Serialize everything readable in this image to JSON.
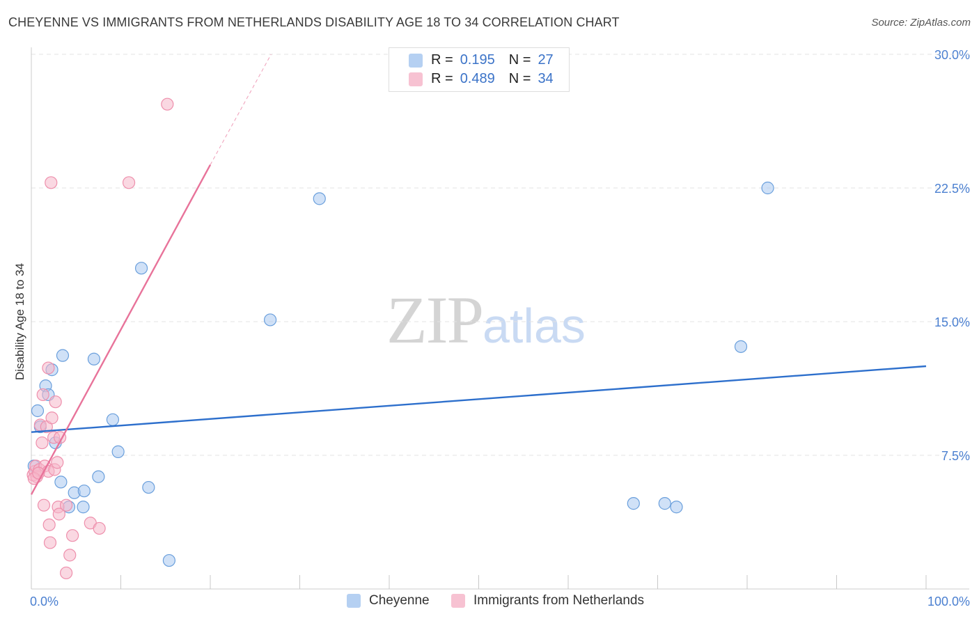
{
  "title": "CHEYENNE VS IMMIGRANTS FROM NETHERLANDS DISABILITY AGE 18 TO 34 CORRELATION CHART",
  "source": "Source: ZipAtlas.com",
  "watermark": {
    "zip": "ZIP",
    "atlas": "atlas"
  },
  "legend": {
    "rows": [
      {
        "r_label": "R =",
        "r_value": "0.195",
        "n_label": "N =",
        "n_value": "27",
        "color": "#a9c8f0"
      },
      {
        "r_label": "R =",
        "r_value": "0.489",
        "n_label": "N =",
        "n_value": "34",
        "color": "#f6b8cb"
      }
    ]
  },
  "bottom_legend": [
    {
      "label": "Cheyenne",
      "color": "#a9c8f0"
    },
    {
      "label": "Immigrants from Netherlands",
      "color": "#f6b8cb"
    }
  ],
  "chart_data": {
    "type": "scatter",
    "xlabel": "",
    "ylabel": "Disability Age 18 to 34",
    "xlim": [
      0,
      100
    ],
    "ylim": [
      0,
      30
    ],
    "x_tick_labels": [
      "0.0%",
      "100.0%"
    ],
    "y_ticks": [
      7.5,
      15.0,
      22.5,
      30.0
    ],
    "y_tick_labels": [
      "7.5%",
      "15.0%",
      "22.5%",
      "30.0%"
    ],
    "grid": true,
    "series": [
      {
        "name": "Cheyenne",
        "color": "#a9c8f0",
        "stroke": "#6a9fdc",
        "trend_color": "#2d6fcc",
        "trend": {
          "x0": 0,
          "y0": 8.8,
          "x1": 100,
          "y1": 12.5
        },
        "points": [
          [
            0.3,
            6.9
          ],
          [
            0.7,
            10.0
          ],
          [
            1.0,
            9.1
          ],
          [
            1.6,
            11.4
          ],
          [
            1.9,
            10.9
          ],
          [
            2.3,
            12.3
          ],
          [
            2.7,
            8.2
          ],
          [
            3.3,
            6.0
          ],
          [
            3.5,
            13.1
          ],
          [
            4.2,
            4.6
          ],
          [
            4.8,
            5.4
          ],
          [
            5.8,
            4.6
          ],
          [
            5.9,
            5.5
          ],
          [
            7.0,
            12.9
          ],
          [
            7.5,
            6.3
          ],
          [
            9.1,
            9.5
          ],
          [
            9.7,
            7.7
          ],
          [
            12.3,
            18.0
          ],
          [
            13.1,
            5.7
          ],
          [
            15.4,
            1.6
          ],
          [
            26.7,
            15.1
          ],
          [
            32.2,
            21.9
          ],
          [
            67.3,
            4.8
          ],
          [
            70.8,
            4.8
          ],
          [
            72.1,
            4.6
          ],
          [
            79.3,
            13.6
          ],
          [
            82.3,
            22.5
          ]
        ]
      },
      {
        "name": "Immigrants from Netherlands",
        "color": "#f6b8cb",
        "stroke": "#ee8fac",
        "trend_color": "#e8739a",
        "trend": {
          "x0": 0,
          "y0": 5.3,
          "x1": 20,
          "y1": 23.8
        },
        "trend_dashed_to": {
          "x": 26.8,
          "y": 30.0
        },
        "points": [
          [
            0.2,
            6.4
          ],
          [
            0.4,
            6.6
          ],
          [
            0.5,
            6.9
          ],
          [
            0.6,
            6.3
          ],
          [
            0.9,
            6.7
          ],
          [
            1.0,
            9.2
          ],
          [
            1.2,
            8.2
          ],
          [
            1.3,
            10.9
          ],
          [
            1.4,
            4.7
          ],
          [
            1.5,
            6.9
          ],
          [
            1.7,
            9.1
          ],
          [
            1.9,
            6.6
          ],
          [
            1.9,
            12.4
          ],
          [
            2.0,
            3.6
          ],
          [
            2.1,
            2.6
          ],
          [
            2.2,
            22.8
          ],
          [
            2.3,
            9.6
          ],
          [
            2.5,
            8.5
          ],
          [
            2.6,
            6.7
          ],
          [
            2.7,
            10.5
          ],
          [
            2.9,
            7.1
          ],
          [
            3.0,
            4.6
          ],
          [
            3.1,
            4.2
          ],
          [
            3.2,
            8.5
          ],
          [
            3.9,
            4.7
          ],
          [
            3.9,
            0.9
          ],
          [
            4.3,
            1.9
          ],
          [
            4.6,
            3.0
          ],
          [
            6.6,
            3.7
          ],
          [
            7.6,
            3.4
          ],
          [
            10.9,
            22.8
          ],
          [
            15.2,
            27.2
          ],
          [
            0.3,
            6.2
          ],
          [
            0.8,
            6.5
          ]
        ]
      }
    ]
  }
}
